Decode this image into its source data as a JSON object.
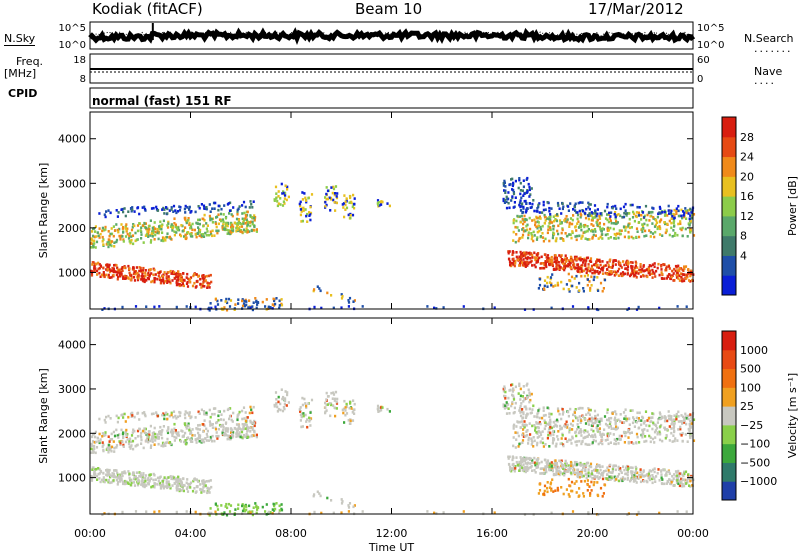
{
  "header": {
    "title": "Kodiak (fitACF)",
    "beam": "Beam 10",
    "date": "17/Mar/2012"
  },
  "side_labels": {
    "nsky": "N.Sky",
    "nsearch": "N.Search",
    "freq_top": "Freq.",
    "freq_units": "[MHz]",
    "nave": "Nave",
    "cpid": "CPID"
  },
  "cpid_text": "normal (fast) 151 RF",
  "noise_panel": {
    "left_ticks": [
      "10^5",
      "10^0"
    ],
    "right_ticks": [
      "10^5",
      "10^0"
    ]
  },
  "freq_panel": {
    "left_ticks": [
      "18",
      "8"
    ],
    "right_ticks": [
      "60",
      "0"
    ]
  },
  "chart_data": [
    {
      "type": "heatmap",
      "name": "power",
      "ylabel": "Slant Range [km]",
      "xlabel": "",
      "colorbar_label": "Power [dB]",
      "colorbar_ticks": [
        "28",
        "24",
        "20",
        "16",
        "12",
        "8",
        "4"
      ],
      "colors": [
        "#0a1fd6",
        "#1f4fa8",
        "#3f7a6a",
        "#5aa86a",
        "#8ccc4a",
        "#e8c020",
        "#f08a1a",
        "#e64a14",
        "#d81e10"
      ],
      "ylim": [
        180,
        4600
      ],
      "y_ticks": [
        1000,
        2000,
        3000,
        4000
      ],
      "x_ticks": [
        "00:00",
        "04:00",
        "08:00",
        "12:00",
        "16:00",
        "20:00",
        "00:00"
      ],
      "xlim_hours": [
        0,
        24
      ]
    },
    {
      "type": "heatmap",
      "name": "velocity",
      "ylabel": "Slant Range [km]",
      "xlabel": "Time UT",
      "colorbar_label": "Velocity [m s⁻¹]",
      "colorbar_ticks": [
        "1000",
        "500",
        "100",
        "25",
        "−25",
        "−100",
        "−500",
        "−1000"
      ],
      "colors": [
        "#1f3fa8",
        "#2f7a6a",
        "#3ca83c",
        "#8ad04a",
        "#c8c8c0",
        "#f0a020",
        "#f07010",
        "#e84a14",
        "#d81e10"
      ],
      "ylim": [
        180,
        4600
      ],
      "y_ticks": [
        1000,
        2000,
        3000,
        4000
      ],
      "x_ticks": [
        "00:00",
        "04:00",
        "08:00",
        "12:00",
        "16:00",
        "20:00",
        "00:00"
      ],
      "xlim_hours": [
        0,
        24
      ]
    }
  ]
}
